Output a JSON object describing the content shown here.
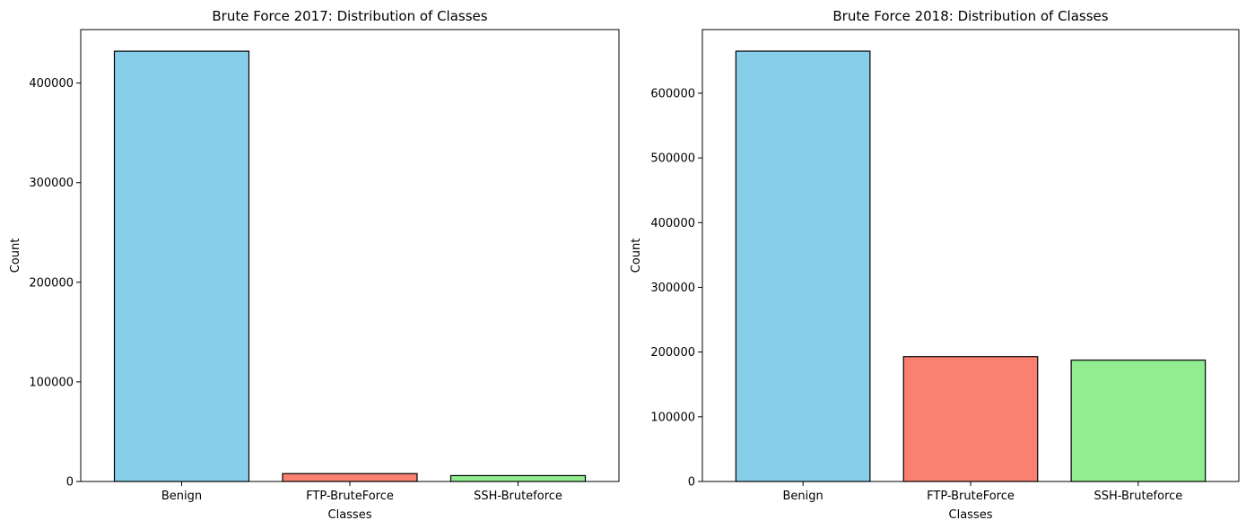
{
  "chart_data": [
    {
      "type": "bar",
      "title": "Brute Force 2017: Distribution of Classes",
      "xlabel": "Classes",
      "ylabel": "Count",
      "categories": [
        "Benign",
        "FTP-BruteForce",
        "SSH-Bruteforce"
      ],
      "values": [
        432000,
        7900,
        5900
      ],
      "colors": [
        "#87CEEB",
        "#FA8072",
        "#90EE90"
      ],
      "ylim": [
        0,
        453700
      ],
      "yticks": [
        0,
        100000,
        200000,
        300000,
        400000
      ],
      "grid": false
    },
    {
      "type": "bar",
      "title": "Brute Force 2018: Distribution of Classes",
      "xlabel": "Classes",
      "ylabel": "Count",
      "categories": [
        "Benign",
        "FTP-BruteForce",
        "SSH-Bruteforce"
      ],
      "values": [
        665000,
        193000,
        187500
      ],
      "colors": [
        "#87CEEB",
        "#FA8072",
        "#90EE90"
      ],
      "ylim": [
        0,
        698300
      ],
      "yticks": [
        0,
        100000,
        200000,
        300000,
        400000,
        500000,
        600000
      ],
      "grid": false
    }
  ]
}
